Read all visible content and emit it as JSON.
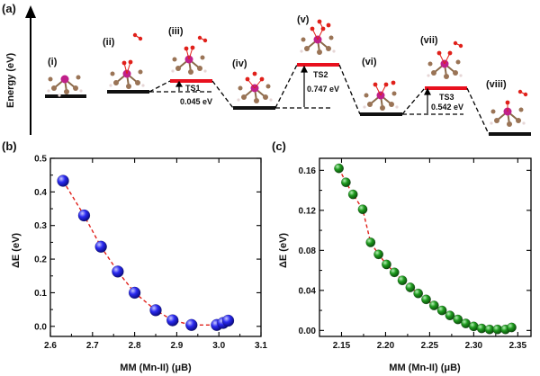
{
  "panel_a": {
    "panel_label": "(a)",
    "y_axis_label": "Energy (eV)",
    "states": [
      "(i)",
      "(ii)",
      "(iii)",
      "(iv)",
      "(v)",
      "(vi)",
      "(vii)",
      "(viii)"
    ],
    "transition_states": [
      {
        "name": "TS1",
        "barrier": "0.045 eV"
      },
      {
        "name": "TS2",
        "barrier": "0.747 eV"
      },
      {
        "name": "TS3",
        "barrier": "0.542 eV"
      }
    ]
  },
  "chart_data": [
    {
      "panel_label": "(b)",
      "type": "scatter",
      "xlabel": "MM (Mn-II) (μB)",
      "ylabel": "ΔE (eV)",
      "xlim": [
        2.6,
        3.1
      ],
      "ylim": [
        -0.03,
        0.5
      ],
      "xticks": [
        "2.6",
        "2.7",
        "2.8",
        "2.9",
        "3.0",
        "3.1"
      ],
      "yticks": [
        "0.0",
        "0.1",
        "0.2",
        "0.3",
        "0.4",
        "0.5"
      ],
      "marker_color": "#1a1aee",
      "line_color": "#e0201a",
      "x": [
        2.63,
        2.68,
        2.72,
        2.76,
        2.8,
        2.85,
        2.89,
        2.935,
        2.995,
        3.01,
        3.022
      ],
      "y": [
        0.433,
        0.33,
        0.237,
        0.163,
        0.1,
        0.048,
        0.018,
        0.004,
        0.004,
        0.01,
        0.017
      ]
    },
    {
      "panel_label": "(c)",
      "type": "scatter",
      "xlabel": "MM (Mn-II) (μB)",
      "ylabel": "ΔE (eV)",
      "xlim": [
        2.125,
        2.365
      ],
      "ylim": [
        -0.006,
        0.172
      ],
      "xticks": [
        "2.15",
        "2.20",
        "2.25",
        "2.30",
        "2.35"
      ],
      "yticks": [
        "0.00",
        "0.04",
        "0.08",
        "0.12",
        "0.16"
      ],
      "marker_color": "#1a8a1a",
      "line_color": "#e0201a",
      "x": [
        2.147,
        2.155,
        2.163,
        2.174,
        2.183,
        2.192,
        2.201,
        2.21,
        2.219,
        2.228,
        2.237,
        2.246,
        2.255,
        2.264,
        2.273,
        2.282,
        2.291,
        2.3,
        2.309,
        2.318,
        2.327,
        2.336,
        2.343
      ],
      "y": [
        0.162,
        0.148,
        0.136,
        0.121,
        0.088,
        0.076,
        0.066,
        0.058,
        0.05,
        0.043,
        0.037,
        0.031,
        0.025,
        0.02,
        0.015,
        0.011,
        0.007,
        0.004,
        0.002,
        0.001,
        0.001,
        0.001,
        0.003
      ]
    }
  ]
}
